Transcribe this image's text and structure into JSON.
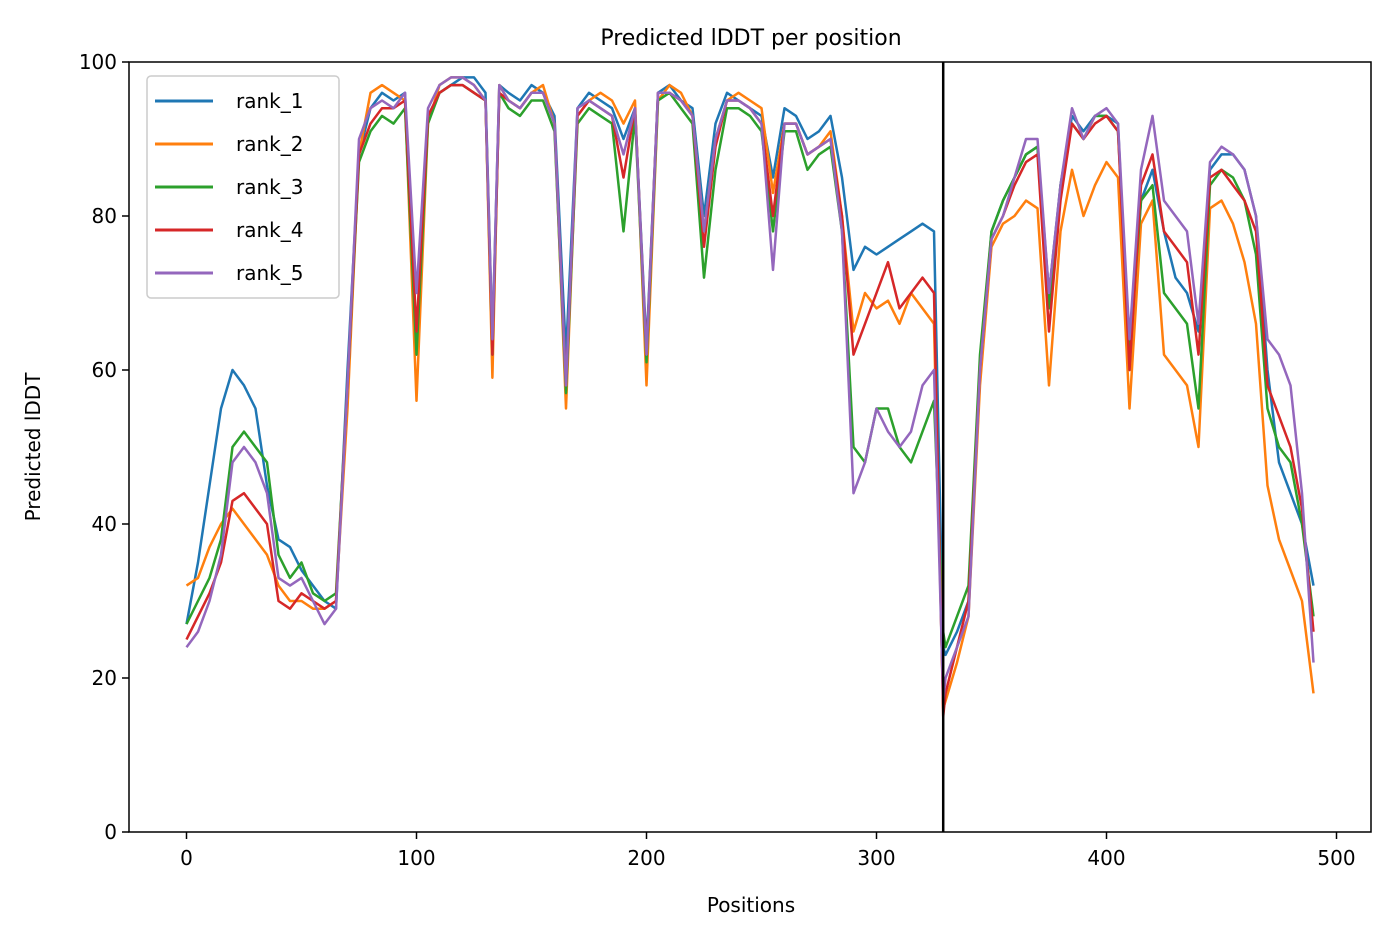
{
  "chart_data": {
    "type": "line",
    "title": "Predicted lDDT per position",
    "xlabel": "Positions",
    "ylabel": "Predicted lDDT",
    "xlim": [
      -25,
      515
    ],
    "ylim": [
      0,
      100
    ],
    "xticks": [
      0,
      100,
      200,
      300,
      400,
      500
    ],
    "yticks": [
      0,
      20,
      40,
      60,
      80,
      100
    ],
    "grid": false,
    "legend_position": "top-left",
    "chain_break": 329,
    "colors": {
      "rank_1": "#1f77b4",
      "rank_2": "#ff7f0e",
      "rank_3": "#2ca02c",
      "rank_4": "#d62728",
      "rank_5": "#9467bd",
      "chain_break": "#000000"
    },
    "series": [
      {
        "name": "rank_1",
        "color": "#1f77b4",
        "x": [
          0,
          5,
          10,
          15,
          20,
          25,
          30,
          35,
          40,
          45,
          50,
          55,
          60,
          65,
          70,
          75,
          80,
          85,
          90,
          95,
          100,
          105,
          110,
          115,
          120,
          125,
          130,
          133,
          136,
          140,
          145,
          150,
          155,
          160,
          165,
          170,
          175,
          180,
          185,
          190,
          195,
          200,
          205,
          210,
          215,
          220,
          225,
          230,
          235,
          240,
          245,
          250,
          255,
          260,
          265,
          270,
          275,
          280,
          285,
          290,
          295,
          300,
          305,
          310,
          315,
          320,
          325,
          329,
          330,
          335,
          340,
          345,
          350,
          355,
          360,
          365,
          370,
          375,
          380,
          385,
          390,
          395,
          400,
          405,
          410,
          415,
          420,
          425,
          430,
          435,
          440,
          445,
          450,
          455,
          460,
          465,
          470,
          475,
          480,
          485,
          490
        ],
        "values": [
          27,
          35,
          45,
          55,
          60,
          58,
          55,
          45,
          38,
          37,
          34,
          32,
          30,
          29,
          60,
          88,
          94,
          96,
          95,
          96,
          62,
          93,
          96,
          97,
          98,
          98,
          96,
          64,
          97,
          96,
          95,
          97,
          96,
          93,
          62,
          94,
          96,
          95,
          94,
          90,
          94,
          63,
          96,
          97,
          95,
          94,
          80,
          92,
          96,
          95,
          94,
          93,
          85,
          94,
          93,
          90,
          91,
          93,
          85,
          73,
          76,
          75,
          76,
          77,
          78,
          79,
          78,
          24,
          23,
          26,
          30,
          60,
          78,
          82,
          85,
          88,
          89,
          70,
          84,
          93,
          91,
          93,
          93,
          92,
          60,
          82,
          86,
          78,
          72,
          70,
          65,
          86,
          88,
          88,
          86,
          80,
          60,
          48,
          44,
          40,
          32
        ]
      },
      {
        "name": "rank_2",
        "color": "#ff7f0e",
        "x": [
          0,
          5,
          10,
          15,
          20,
          25,
          30,
          35,
          40,
          45,
          50,
          55,
          60,
          65,
          70,
          75,
          80,
          85,
          90,
          95,
          100,
          105,
          110,
          115,
          120,
          125,
          130,
          133,
          136,
          140,
          145,
          150,
          155,
          160,
          165,
          170,
          175,
          180,
          185,
          190,
          195,
          200,
          205,
          210,
          215,
          220,
          225,
          230,
          235,
          240,
          245,
          250,
          255,
          260,
          265,
          270,
          275,
          280,
          285,
          290,
          295,
          300,
          305,
          310,
          315,
          320,
          325,
          329,
          330,
          335,
          340,
          345,
          350,
          355,
          360,
          365,
          370,
          375,
          380,
          385,
          390,
          395,
          400,
          405,
          410,
          415,
          420,
          425,
          430,
          435,
          440,
          445,
          450,
          455,
          460,
          465,
          470,
          475,
          480,
          485,
          490
        ],
        "values": [
          32,
          33,
          37,
          40,
          42,
          40,
          38,
          36,
          32,
          30,
          30,
          29,
          29,
          30,
          55,
          88,
          96,
          97,
          96,
          95,
          56,
          92,
          97,
          98,
          98,
          97,
          95,
          59,
          97,
          95,
          94,
          96,
          97,
          92,
          55,
          93,
          95,
          96,
          95,
          92,
          95,
          58,
          95,
          97,
          96,
          93,
          78,
          90,
          95,
          96,
          95,
          94,
          83,
          92,
          92,
          88,
          89,
          91,
          80,
          65,
          70,
          68,
          69,
          66,
          70,
          68,
          66,
          16,
          17,
          22,
          28,
          58,
          76,
          79,
          80,
          82,
          81,
          58,
          78,
          86,
          80,
          84,
          87,
          85,
          55,
          79,
          82,
          62,
          60,
          58,
          50,
          81,
          82,
          79,
          74,
          66,
          45,
          38,
          34,
          30,
          18
        ]
      },
      {
        "name": "rank_3",
        "color": "#2ca02c",
        "x": [
          0,
          5,
          10,
          15,
          20,
          25,
          30,
          35,
          40,
          45,
          50,
          55,
          60,
          65,
          70,
          75,
          80,
          85,
          90,
          95,
          100,
          105,
          110,
          115,
          120,
          125,
          130,
          133,
          136,
          140,
          145,
          150,
          155,
          160,
          165,
          170,
          175,
          180,
          185,
          190,
          195,
          200,
          205,
          210,
          215,
          220,
          225,
          230,
          235,
          240,
          245,
          250,
          255,
          260,
          265,
          270,
          275,
          280,
          285,
          290,
          295,
          300,
          305,
          310,
          315,
          320,
          325,
          329,
          330,
          335,
          340,
          345,
          350,
          355,
          360,
          365,
          370,
          375,
          380,
          385,
          390,
          395,
          400,
          405,
          410,
          415,
          420,
          425,
          430,
          435,
          440,
          445,
          450,
          455,
          460,
          465,
          470,
          475,
          480,
          485,
          490
        ],
        "values": [
          27,
          30,
          33,
          38,
          50,
          52,
          50,
          48,
          36,
          33,
          35,
          31,
          30,
          31,
          58,
          87,
          91,
          93,
          92,
          94,
          62,
          92,
          96,
          97,
          97,
          96,
          95,
          62,
          96,
          94,
          93,
          95,
          95,
          91,
          57,
          92,
          94,
          93,
          92,
          78,
          93,
          61,
          95,
          96,
          94,
          92,
          72,
          86,
          94,
          94,
          93,
          91,
          78,
          91,
          91,
          86,
          88,
          89,
          78,
          50,
          48,
          55,
          55,
          50,
          48,
          52,
          56,
          26,
          24,
          28,
          32,
          62,
          78,
          82,
          85,
          88,
          89,
          68,
          84,
          92,
          90,
          93,
          93,
          91,
          62,
          82,
          84,
          70,
          68,
          66,
          55,
          84,
          86,
          85,
          82,
          75,
          55,
          50,
          48,
          40,
          28
        ]
      },
      {
        "name": "rank_4",
        "color": "#d62728",
        "x": [
          0,
          5,
          10,
          15,
          20,
          25,
          30,
          35,
          40,
          45,
          50,
          55,
          60,
          65,
          70,
          75,
          80,
          85,
          90,
          95,
          100,
          105,
          110,
          115,
          120,
          125,
          130,
          133,
          136,
          140,
          145,
          150,
          155,
          160,
          165,
          170,
          175,
          180,
          185,
          190,
          195,
          200,
          205,
          210,
          215,
          220,
          225,
          230,
          235,
          240,
          245,
          250,
          255,
          260,
          265,
          270,
          275,
          280,
          285,
          290,
          295,
          300,
          305,
          310,
          315,
          320,
          325,
          329,
          330,
          335,
          340,
          345,
          350,
          355,
          360,
          365,
          370,
          375,
          380,
          385,
          390,
          395,
          400,
          405,
          410,
          415,
          420,
          425,
          430,
          435,
          440,
          445,
          450,
          455,
          460,
          465,
          470,
          475,
          480,
          485,
          490
        ],
        "values": [
          25,
          28,
          31,
          35,
          43,
          44,
          42,
          40,
          30,
          29,
          31,
          30,
          29,
          30,
          58,
          88,
          92,
          94,
          94,
          95,
          65,
          93,
          96,
          97,
          97,
          96,
          95,
          62,
          96,
          95,
          94,
          96,
          96,
          92,
          58,
          93,
          95,
          94,
          93,
          85,
          94,
          62,
          96,
          96,
          95,
          93,
          76,
          89,
          95,
          95,
          94,
          92,
          80,
          92,
          92,
          88,
          89,
          90,
          80,
          62,
          66,
          70,
          74,
          68,
          70,
          72,
          70,
          15,
          18,
          24,
          30,
          60,
          77,
          80,
          84,
          87,
          88,
          65,
          82,
          92,
          90,
          92,
          93,
          91,
          60,
          84,
          88,
          78,
          76,
          74,
          62,
          85,
          86,
          84,
          82,
          78,
          58,
          54,
          50,
          42,
          26
        ]
      },
      {
        "name": "rank_5",
        "color": "#9467bd",
        "x": [
          0,
          5,
          10,
          15,
          20,
          25,
          30,
          35,
          40,
          45,
          50,
          55,
          60,
          65,
          70,
          75,
          80,
          85,
          90,
          95,
          100,
          105,
          110,
          115,
          120,
          125,
          130,
          133,
          136,
          140,
          145,
          150,
          155,
          160,
          165,
          170,
          175,
          180,
          185,
          190,
          195,
          200,
          205,
          210,
          215,
          220,
          225,
          230,
          235,
          240,
          245,
          250,
          255,
          260,
          265,
          270,
          275,
          280,
          285,
          290,
          295,
          300,
          305,
          310,
          315,
          320,
          325,
          329,
          330,
          335,
          340,
          345,
          350,
          355,
          360,
          365,
          370,
          375,
          380,
          385,
          390,
          395,
          400,
          405,
          410,
          415,
          420,
          425,
          430,
          435,
          440,
          445,
          450,
          455,
          460,
          465,
          470,
          475,
          480,
          485,
          490
        ],
        "values": [
          24,
          26,
          30,
          36,
          48,
          50,
          48,
          44,
          33,
          32,
          33,
          30,
          27,
          29,
          58,
          90,
          94,
          95,
          94,
          96,
          70,
          94,
          97,
          98,
          98,
          97,
          95,
          64,
          97,
          95,
          94,
          96,
          96,
          92,
          58,
          94,
          95,
          94,
          93,
          88,
          94,
          62,
          96,
          96,
          95,
          93,
          78,
          90,
          95,
          95,
          94,
          92,
          73,
          92,
          92,
          88,
          89,
          90,
          78,
          44,
          48,
          55,
          52,
          50,
          52,
          58,
          60,
          17,
          20,
          24,
          28,
          60,
          77,
          80,
          85,
          90,
          90,
          70,
          84,
          94,
          90,
          93,
          94,
          92,
          64,
          86,
          93,
          82,
          80,
          78,
          66,
          87,
          89,
          88,
          86,
          80,
          64,
          62,
          58,
          44,
          22
        ]
      }
    ]
  }
}
